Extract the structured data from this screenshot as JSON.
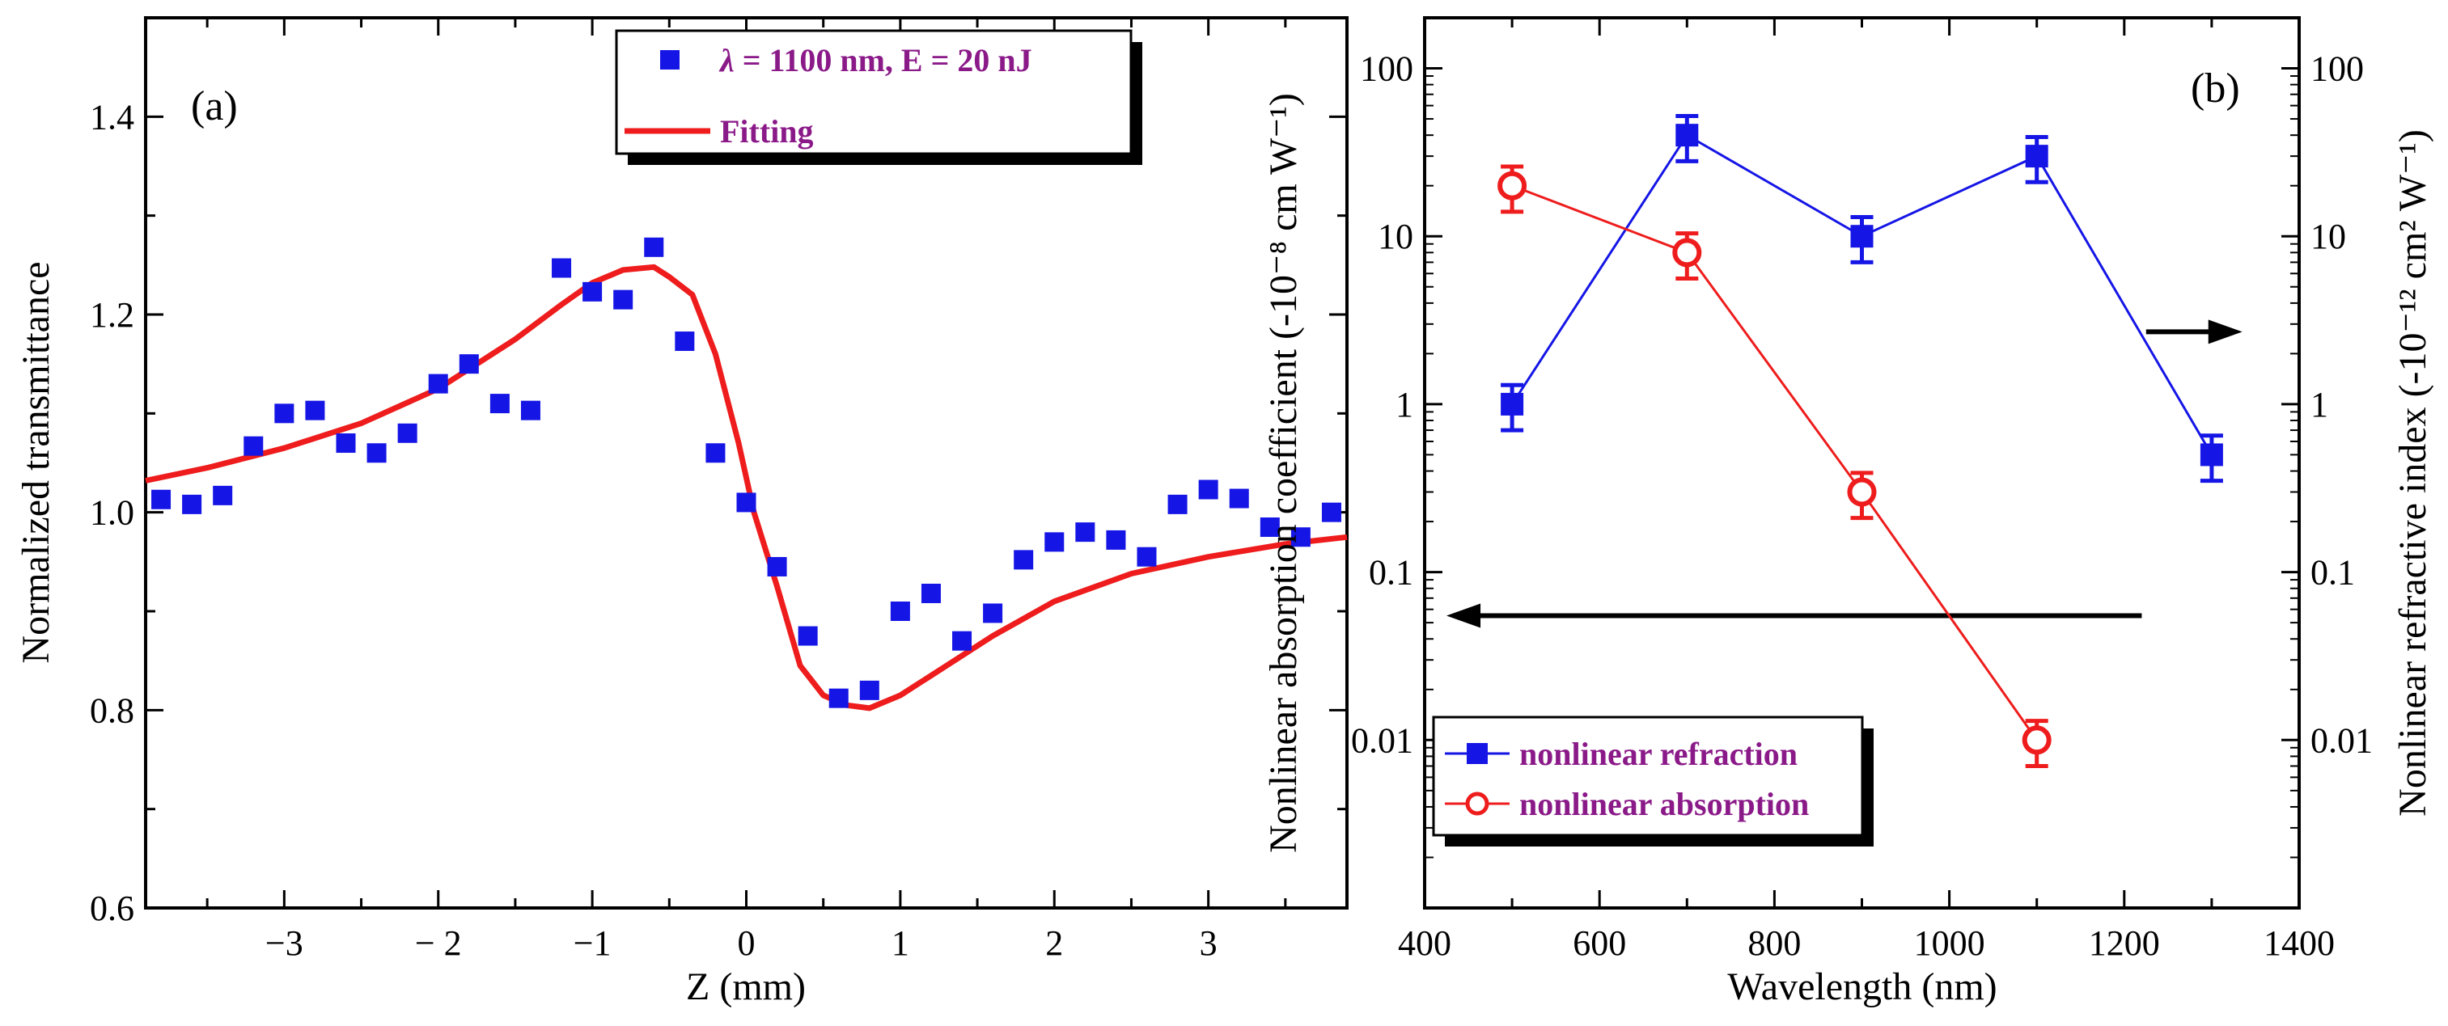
{
  "chart_data": [
    {
      "type": "scatter",
      "panel_label": "(a)",
      "xlabel": "Z (mm)",
      "ylabel": "Normalized transmittance",
      "xlim": [
        -3.9,
        3.9
      ],
      "ylim": [
        0.6,
        1.5
      ],
      "xticks": [
        -3,
        -2,
        -1,
        0,
        1,
        2,
        3
      ],
      "xtick_labels": [
        "−3",
        "− 2",
        "−1",
        "0",
        "1",
        "2",
        "3"
      ],
      "yticks": [
        0.6,
        0.8,
        1.0,
        1.2,
        1.4
      ],
      "ytick_labels": [
        "0.6",
        "0.8",
        "1.0",
        "1.2",
        "1.4"
      ],
      "legend_position": "top-right",
      "series": [
        {
          "name": "λ = 1100 nm, E = 20 nJ",
          "name_symbol": "λ",
          "name_rest": " = 1100 nm, E = 20 nJ",
          "kind": "markers",
          "color": "#1515e6",
          "x": [
            -3.8,
            -3.6,
            -3.4,
            -3.2,
            -3.0,
            -2.8,
            -2.6,
            -2.4,
            -2.2,
            -2.0,
            -1.8,
            -1.6,
            -1.4,
            -1.2,
            -1.0,
            -0.8,
            -0.6,
            -0.4,
            -0.2,
            0.0,
            0.2,
            0.4,
            0.6,
            0.8,
            1.0,
            1.2,
            1.4,
            1.6,
            1.8,
            2.0,
            2.2,
            2.4,
            2.6,
            2.8,
            3.0,
            3.2,
            3.4,
            3.6,
            3.8
          ],
          "y": [
            1.013,
            1.008,
            1.017,
            1.067,
            1.1,
            1.103,
            1.07,
            1.06,
            1.08,
            1.13,
            1.15,
            1.11,
            1.103,
            1.247,
            1.223,
            1.215,
            1.268,
            1.173,
            1.06,
            1.01,
            0.945,
            0.875,
            0.812,
            0.82,
            0.9,
            0.918,
            0.87,
            0.898,
            0.952,
            0.97,
            0.98,
            0.972,
            0.955,
            1.008,
            1.023,
            1.014,
            0.985,
            0.975,
            1.0
          ]
        },
        {
          "name": "Fitting",
          "kind": "line",
          "color": "#ee1c1c",
          "x": [
            -3.9,
            -3.5,
            -3.0,
            -2.5,
            -2.0,
            -1.5,
            -1.2,
            -1.0,
            -0.8,
            -0.6,
            -0.5,
            -0.35,
            -0.2,
            -0.05,
            0.05,
            0.2,
            0.35,
            0.5,
            0.65,
            0.8,
            1.0,
            1.3,
            1.6,
            2.0,
            2.5,
            3.0,
            3.5,
            3.9
          ],
          "y": [
            1.032,
            1.045,
            1.065,
            1.09,
            1.125,
            1.175,
            1.21,
            1.232,
            1.245,
            1.248,
            1.238,
            1.22,
            1.16,
            1.07,
            1.0,
            0.925,
            0.845,
            0.815,
            0.805,
            0.802,
            0.815,
            0.845,
            0.875,
            0.91,
            0.938,
            0.955,
            0.968,
            0.975
          ]
        }
      ]
    },
    {
      "type": "line",
      "panel_label": "(b)",
      "xlabel": "Wavelength (nm)",
      "ylabel_left": "Nonlinear absorption coefficient (-10⁻⁸ cm W⁻¹)",
      "ylabel_right": "Nonlinear refractive index (-10⁻¹² cm² W⁻¹)",
      "y_scale": "log",
      "xlim": [
        400,
        1400
      ],
      "ylim": [
        0.001,
        200
      ],
      "xticks": [
        400,
        600,
        800,
        1000,
        1200,
        1400
      ],
      "xtick_labels": [
        "400",
        "600",
        "800",
        "1000",
        "1200",
        "1400"
      ],
      "yticks": [
        0.01,
        0.1,
        1,
        10,
        100
      ],
      "ytick_labels": [
        "0.01",
        "0.1",
        "1",
        "10",
        "100"
      ],
      "legend_position": "bottom-left",
      "arrows": [
        {
          "direction": "left",
          "y": 0.055,
          "x_from": 1220,
          "x_to": 425
        },
        {
          "direction": "right",
          "y": 2.7,
          "x_from": 1225,
          "x_to": 1335
        }
      ],
      "series": [
        {
          "name": "nonlinear refraction",
          "marker": "filled-square",
          "color": "#1515e6",
          "x": [
            500,
            700,
            900,
            1100,
            1300
          ],
          "y": [
            1.0,
            40,
            10,
            30,
            0.5
          ],
          "err_low": [
            0.7,
            28,
            7,
            21,
            0.35
          ],
          "err_high": [
            1.3,
            52,
            13,
            39,
            0.65
          ]
        },
        {
          "name": "nonlinear absorption",
          "marker": "open-circle",
          "color": "#ee1c1c",
          "x": [
            500,
            700,
            900,
            1100
          ],
          "y": [
            20,
            8,
            0.3,
            0.01
          ],
          "err_low": [
            14,
            5.6,
            0.21,
            0.007
          ],
          "err_high": [
            26,
            10.4,
            0.39,
            0.013
          ]
        }
      ]
    }
  ]
}
